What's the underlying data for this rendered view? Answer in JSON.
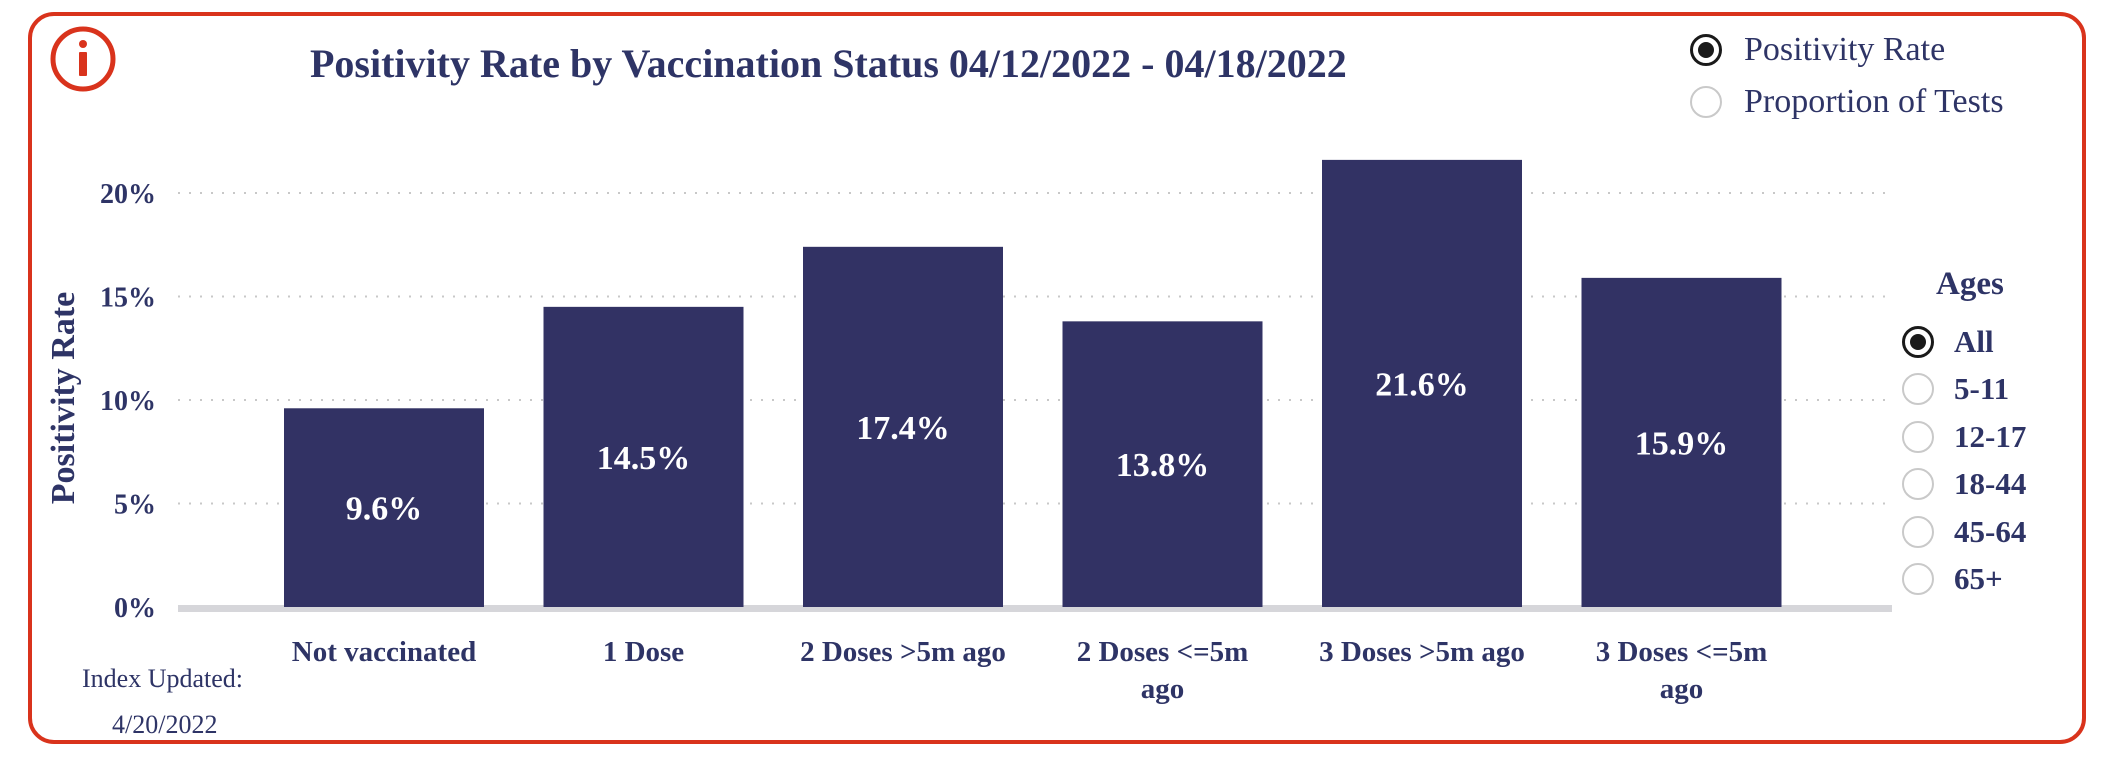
{
  "title": "Positivity Rate by Vaccination Status 04/12/2022 - 04/18/2022",
  "metric_options": [
    {
      "label": "Positivity Rate",
      "selected": true
    },
    {
      "label": "Proportion of Tests",
      "selected": false
    }
  ],
  "ages": {
    "title": "Ages",
    "options": [
      {
        "label": "All",
        "selected": true
      },
      {
        "label": "5-11",
        "selected": false
      },
      {
        "label": "12-17",
        "selected": false
      },
      {
        "label": "18-44",
        "selected": false
      },
      {
        "label": "45-64",
        "selected": false
      },
      {
        "label": "65+",
        "selected": false
      }
    ]
  },
  "index_updated": {
    "label": "Index Updated:",
    "date": "4/20/2022"
  },
  "colors": {
    "frame": "#d9331c",
    "bar": "#323264",
    "text": "#2e3466"
  },
  "icon": "info-icon",
  "chart_data": {
    "type": "bar",
    "ylabel": "Positivity Rate",
    "xlabel": "",
    "ylim": [
      0,
      22
    ],
    "yticks": [
      0,
      5,
      10,
      15,
      20
    ],
    "ytick_labels": [
      "0%",
      "5%",
      "10%",
      "15%",
      "20%"
    ],
    "categories": [
      [
        "Not vaccinated"
      ],
      [
        "1 Dose"
      ],
      [
        "2 Doses >5m ago"
      ],
      [
        "2 Doses <=5m",
        "ago"
      ],
      [
        "3 Doses >5m ago"
      ],
      [
        "3 Doses <=5m",
        "ago"
      ]
    ],
    "values": [
      9.6,
      14.5,
      17.4,
      13.8,
      21.6,
      15.9
    ],
    "data_labels": [
      "9.6%",
      "14.5%",
      "17.4%",
      "13.8%",
      "21.6%",
      "15.9%"
    ],
    "grid": "horizontal-dotted",
    "legend": "none"
  }
}
